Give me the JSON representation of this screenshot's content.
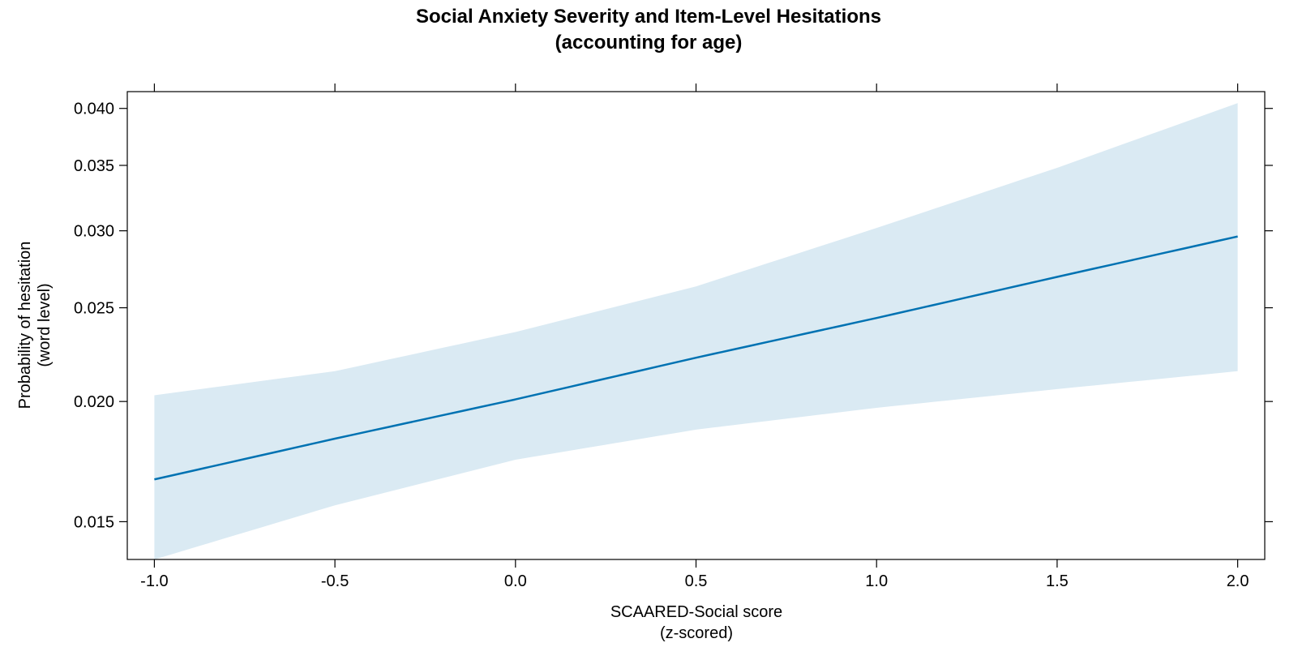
{
  "chart_data": {
    "type": "line",
    "title": "Social Anxiety Severity and Item-Level Hesitations",
    "subtitle": "(accounting for age)",
    "xlabel": "SCAARED-Social score",
    "xlabel_sub": "(z-scored)",
    "ylabel": "Probability of hesitation",
    "ylabel_sub": "(word level)",
    "xlim": [
      -1.075,
      2.075
    ],
    "ylim": [
      0.0137,
      0.0416
    ],
    "yscale": "logit",
    "grid": false,
    "legend": "none",
    "x_ticks": [
      -1.0,
      -0.5,
      0.0,
      0.5,
      1.0,
      1.5,
      2.0
    ],
    "x_tick_labels": [
      "-1.0",
      "-0.5",
      "0.0",
      "0.5",
      "1.0",
      "1.5",
      "2.0"
    ],
    "y_ticks": [
      0.015,
      0.02,
      0.025,
      0.03,
      0.035,
      0.04
    ],
    "y_tick_labels": [
      "0.015",
      "0.020",
      "0.025",
      "0.030",
      "0.035",
      "0.040"
    ],
    "colors": {
      "line": "#0072b2",
      "band": "#daeaf3"
    },
    "series": [
      {
        "x": [
          -1.0,
          -0.5,
          0.0,
          0.5,
          1.0,
          1.5,
          2.0
        ],
        "fit": [
          0.0166,
          0.0183,
          0.0201,
          0.0222,
          0.0244,
          0.0269,
          0.0296
        ],
        "lower": [
          0.0137,
          0.0156,
          0.0174,
          0.0187,
          0.0197,
          0.0206,
          0.0215
        ],
        "upper": [
          0.0203,
          0.0215,
          0.0236,
          0.0263,
          0.0302,
          0.0348,
          0.0405
        ]
      }
    ]
  }
}
